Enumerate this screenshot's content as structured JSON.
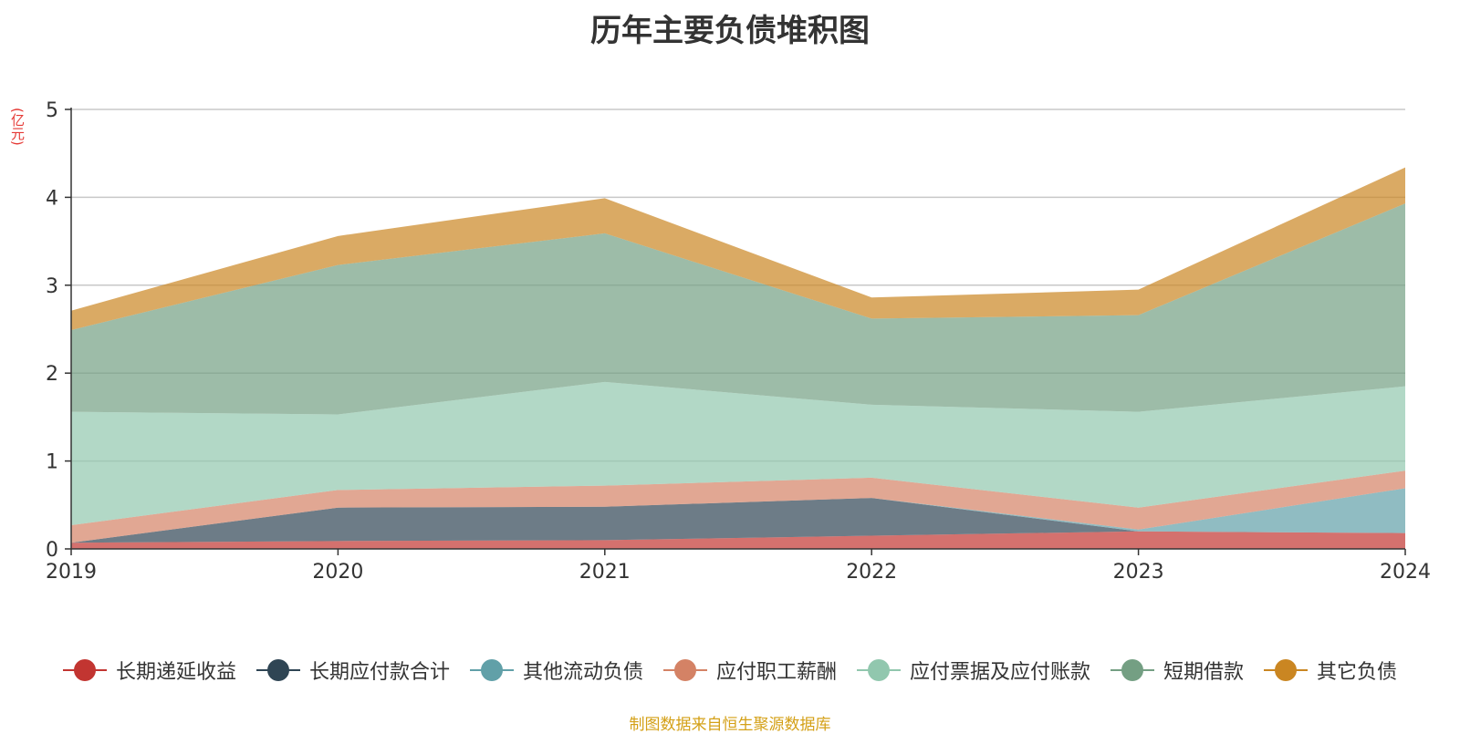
{
  "title": "历年主要负债堆积图",
  "unit": "(亿元)",
  "source": "制图数据来自恒生聚源数据库",
  "chart_data": {
    "type": "area",
    "stacked": true,
    "categories": [
      "2019",
      "2020",
      "2021",
      "2022",
      "2023",
      "2024"
    ],
    "ylim": [
      0,
      5
    ],
    "yticks": [
      0,
      1,
      2,
      3,
      4,
      5
    ],
    "grid": true,
    "legend_position": "bottom",
    "series": [
      {
        "name": "长期递延收益",
        "color": "#c23531",
        "values": [
          0.07,
          0.09,
          0.1,
          0.15,
          0.2,
          0.18
        ]
      },
      {
        "name": "长期应付款合计",
        "color": "#2f4554",
        "values": [
          0.0,
          0.38,
          0.38,
          0.43,
          0.0,
          0.0
        ]
      },
      {
        "name": "其他流动负债",
        "color": "#61a0a8",
        "values": [
          0.0,
          0.0,
          0.0,
          0.0,
          0.02,
          0.51
        ]
      },
      {
        "name": "应付职工薪酬",
        "color": "#d48265",
        "values": [
          0.2,
          0.2,
          0.24,
          0.23,
          0.25,
          0.2
        ]
      },
      {
        "name": "应付票据及应付账款",
        "color": "#91c7ae",
        "values": [
          1.29,
          0.86,
          1.18,
          0.83,
          1.09,
          0.96
        ]
      },
      {
        "name": "短期借款",
        "color": "#749f83",
        "values": [
          0.93,
          1.7,
          1.69,
          0.98,
          1.1,
          2.08
        ]
      },
      {
        "name": "其它负债",
        "color": "#ca8622",
        "values": [
          0.22,
          0.33,
          0.4,
          0.24,
          0.29,
          0.41
        ]
      }
    ]
  }
}
